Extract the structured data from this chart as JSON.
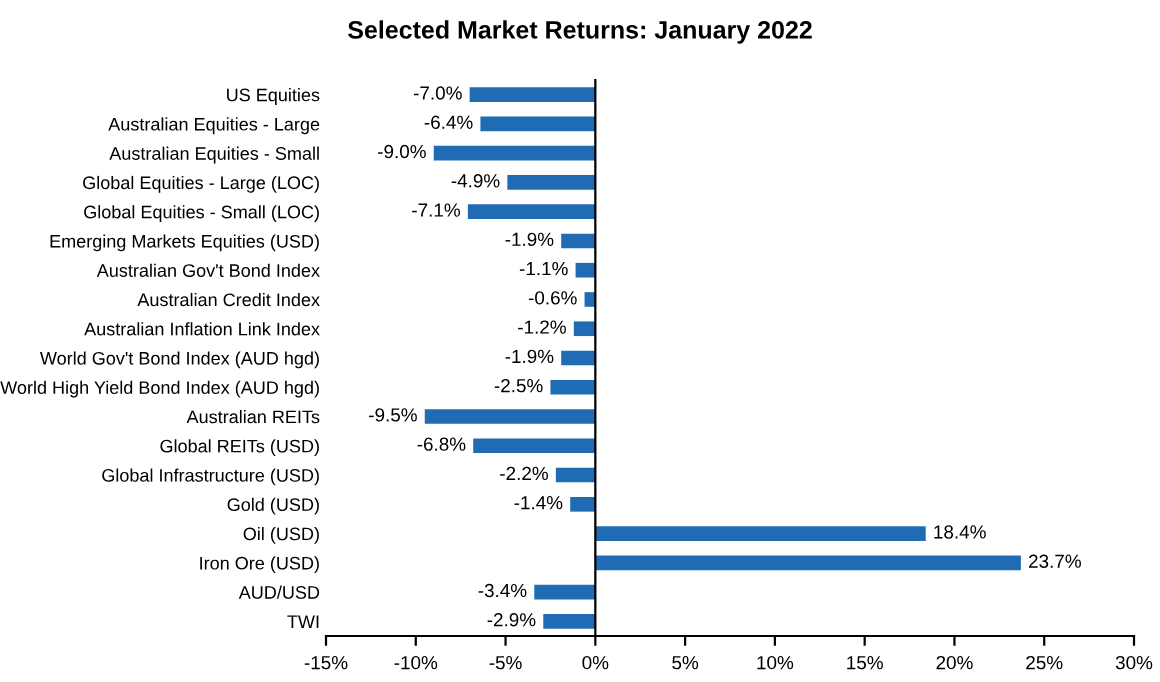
{
  "chart_data": {
    "type": "bar",
    "orientation": "horizontal",
    "title": "Selected Market Returns: January 2022",
    "categories": [
      "US Equities",
      "Australian Equities - Large",
      "Australian Equities - Small",
      "Global Equities - Large (LOC)",
      "Global Equities - Small (LOC)",
      "Emerging Markets Equities (USD)",
      "Australian Gov't Bond Index",
      "Australian Credit Index",
      "Australian Inflation Link Index",
      "World Gov't Bond Index (AUD hgd)",
      "World High Yield Bond Index (AUD hgd)",
      "Australian REITs",
      "Global REITs (USD)",
      "Global Infrastructure (USD)",
      "Gold (USD)",
      "Oil (USD)",
      "Iron Ore (USD)",
      "AUD/USD",
      "TWI"
    ],
    "values": [
      -7.0,
      -6.4,
      -9.0,
      -4.9,
      -7.1,
      -1.9,
      -1.1,
      -0.6,
      -1.2,
      -1.9,
      -2.5,
      -9.5,
      -6.8,
      -2.2,
      -1.4,
      18.4,
      23.7,
      -3.4,
      -2.9
    ],
    "value_labels": [
      "-7.0%",
      "-6.4%",
      "-9.0%",
      "-4.9%",
      "-7.1%",
      "-1.9%",
      "-1.1%",
      "-0.6%",
      "-1.2%",
      "-1.9%",
      "-2.5%",
      "-9.5%",
      "-6.8%",
      "-2.2%",
      "-1.4%",
      "18.4%",
      "23.7%",
      "-3.4%",
      "-2.9%"
    ],
    "color": "#1f6cb5",
    "xlim": [
      -15,
      30
    ],
    "xticks": [
      {
        "value": -15,
        "label": "-15%"
      },
      {
        "value": -10,
        "label": "-10%"
      },
      {
        "value": -5,
        "label": "-5%"
      },
      {
        "value": 0,
        "label": "0%"
      },
      {
        "value": 5,
        "label": "5%"
      },
      {
        "value": 10,
        "label": "10%"
      },
      {
        "value": 15,
        "label": "15%"
      },
      {
        "value": 20,
        "label": "20%"
      },
      {
        "value": 25,
        "label": "25%"
      },
      {
        "value": 30,
        "label": "30%"
      }
    ],
    "legend": false
  }
}
